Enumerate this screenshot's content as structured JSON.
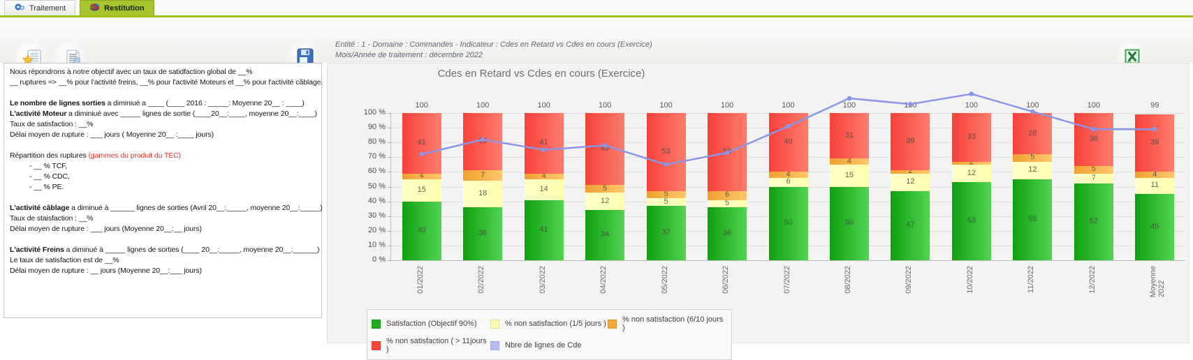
{
  "tabs": [
    {
      "label": "Traitement",
      "active": false
    },
    {
      "label": "Restitution",
      "active": true
    }
  ],
  "header": {
    "line1": "Entité : 1 - Domaine : Commandes - Indicateur : Cdes en Retard vs Cdes en cours (Exercice)",
    "line2": "Mois/Année de traitement : décembre 2022"
  },
  "icons": {
    "tab_traitement": "gears-icon",
    "tab_restitution": "pie-chart-icon",
    "toolbar": [
      "favorite-report-icon",
      "copy-report-icon",
      "save-disk-icon"
    ],
    "export": "excel-icon"
  },
  "colors": {
    "active_tab": "#a6c52f",
    "tab_underline": "#9cc11e",
    "note_red": "#e8302a"
  },
  "notes": {
    "lines": [
      [
        {
          "t": "Nous répondrons à notre objectif avec un taux de satidfaction global de __%"
        }
      ],
      [
        {
          "t": "__ ruptures => __% pour l'activité freins, __% pour l'activité Moteurs et __% pour l'activité câblage."
        }
      ],
      [],
      [
        {
          "t": "Le nombre de lignes sorties",
          "b": 1
        },
        {
          "t": " a diminiué a ____ (____ 2016 : _____: Moyenne 20__ : ____)"
        }
      ],
      [
        {
          "t": "L'activité Moteur",
          "b": 1
        },
        {
          "t": " a diminiué avec _____ lignes de sortie (____20__:____, moyenne 20__:____)"
        }
      ],
      [
        {
          "t": "Taux de satisfaction : __%"
        }
      ],
      [
        {
          "t": "Délai moyen de rupture : ___ jours ( Moyenne 20__ :____ jours)"
        }
      ],
      [],
      [
        {
          "t": "Répartition des ruptures "
        },
        {
          "t": "(gammes du produit du TEC)",
          "c": "#e8302a"
        }
      ],
      [
        {
          "t": "- __ % TCF,",
          "ind": 1
        }
      ],
      [
        {
          "t": "- __ % CDC,",
          "ind": 1
        }
      ],
      [
        {
          "t": "- __ % PE.",
          "ind": 1
        }
      ],
      [],
      [
        {
          "t": "L'activité câblage",
          "b": 1
        },
        {
          "t": " a diminué à ______ lignes de sorties (Avril 20__:_____, moyenne 20__:_____)"
        }
      ],
      [
        {
          "t": "Taux de staisfaction : __%"
        }
      ],
      [
        {
          "t": "Délai moyen de rupture : ___ jours (Moyenne 20__:__ jours)"
        }
      ],
      [],
      [
        {
          "t": "L'activité Freins",
          "b": 1
        },
        {
          "t": " a diminué à _____ lignes de sorties (____ 20__:_____, moyenne 20__:______)"
        }
      ],
      [
        {
          "t": "Le taux de satisfaction est de __%"
        }
      ],
      [
        {
          "t": "Délai moyen de rupture : __ jours (Moyenne 20__:___ jours)"
        }
      ]
    ]
  },
  "chart_data": {
    "type": "bar",
    "subtype": "stacked-percent-with-line",
    "title": "Cdes en Retard vs Cdes en cours (Exercice)",
    "categories": [
      "01/2022",
      "02/2022",
      "03/2022",
      "04/2022",
      "05/2022",
      "06/2022",
      "07/2022",
      "08/2022",
      "09/2022",
      "10/2022",
      "11/2022",
      "12/2022",
      "Moyenne 2022"
    ],
    "series": [
      {
        "name": "Satisfaction (Objectif 90%)",
        "color": "#0fa00f",
        "color2": "#52d452",
        "legend_color": "#1daa1d",
        "values": [
          40,
          36,
          41,
          34,
          37,
          36,
          50,
          50,
          47,
          53,
          55,
          52,
          45
        ]
      },
      {
        "name": "% non satisfaction (1/5 jours )",
        "color": "#ffffc9",
        "color2": "#ffffae",
        "legend_color": "#ffffb4",
        "values": [
          15,
          18,
          14,
          12,
          5,
          5,
          6,
          15,
          12,
          12,
          12,
          7,
          11
        ]
      },
      {
        "name": "% non satisfaction (6/10 jours )",
        "color": "#f0a030",
        "color2": "#ffc76a",
        "legend_color": "#f5a93b",
        "values": [
          4,
          7,
          4,
          5,
          5,
          6,
          4,
          4,
          2,
          2,
          5,
          5,
          4
        ]
      },
      {
        "name": "% non satisfaction ( > 11jours )",
        "color": "#f6413a",
        "color2": "#ff7d6d",
        "legend_color": "#f8453d",
        "values": [
          41,
          39,
          41,
          49,
          53,
          53,
          40,
          31,
          39,
          33,
          28,
          36,
          39
        ]
      }
    ],
    "bar_totals": [
      100,
      100,
      100,
      100,
      100,
      100,
      100,
      100,
      100,
      100,
      100,
      100,
      99
    ],
    "line_series": {
      "name": "Nbre de lignes de Cde",
      "color": "#8b95e8",
      "swatch_color": "#b7bcf0",
      "values_pct_estimated": [
        72,
        82,
        75,
        78,
        65,
        73,
        91,
        110,
        106,
        113,
        101,
        89,
        89
      ]
    },
    "y_axis": {
      "min": 0,
      "max": 100,
      "step": 10,
      "tick_suffix": " %"
    },
    "legend_position": "bottom-left",
    "grid": true
  }
}
